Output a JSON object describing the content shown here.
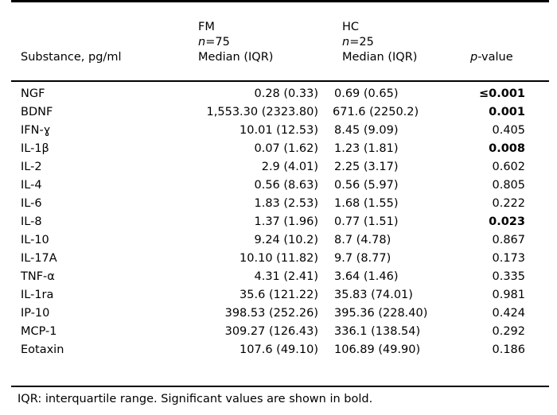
{
  "header": {
    "substance": "Substance, pg/ml",
    "fm": {
      "group": "FM",
      "n_label": "n",
      "n_value": "=75",
      "stat": "Median (IQR)"
    },
    "hc": {
      "group": "HC",
      "n_label": "n",
      "n_value": "=25",
      "stat": "Median (IQR)"
    },
    "p": {
      "italic": "p",
      "rest": "-value"
    }
  },
  "rows": [
    {
      "substance": "NGF",
      "fm": "0.28 (0.33)",
      "hc": "0.69 (0.65)",
      "p": "≤0.001",
      "bold": true
    },
    {
      "substance": "BDNF",
      "fm": "1,553.30 (2323.80)",
      "hc": "671.6 (2250.2)",
      "p": "0.001",
      "bold": true
    },
    {
      "substance": "IFN-ɣ",
      "fm": "10.01 (12.53)",
      "hc": "8.45 (9.09)",
      "p": "0.405",
      "bold": false
    },
    {
      "substance": "IL-1β",
      "fm": "0.07 (1.62)",
      "hc": "1.23 (1.81)",
      "p": "0.008",
      "bold": true
    },
    {
      "substance": "IL-2",
      "fm": "2.9 (4.01)",
      "hc": "2.25 (3.17)",
      "p": "0.602",
      "bold": false
    },
    {
      "substance": "IL-4",
      "fm": "0.56 (8.63)",
      "hc": "0.56 (5.97)",
      "p": "0.805",
      "bold": false
    },
    {
      "substance": "IL-6",
      "fm": "1.83 (2.53)",
      "hc": "1.68 (1.55)",
      "p": "0.222",
      "bold": false
    },
    {
      "substance": "IL-8",
      "fm": "1.37 (1.96)",
      "hc": "0.77 (1.51)",
      "p": "0.023",
      "bold": true
    },
    {
      "substance": "IL-10",
      "fm": "9.24 (10.2)",
      "hc": "8.7 (4.78)",
      "p": "0.867",
      "bold": false
    },
    {
      "substance": "IL-17A",
      "fm": "10.10 (11.82)",
      "hc": "9.7 (8.77)",
      "p": "0.173",
      "bold": false
    },
    {
      "substance": "TNF-α",
      "fm": "4.31 (2.41)",
      "hc": "3.64 (1.46)",
      "p": "0.335",
      "bold": false
    },
    {
      "substance": "IL-1ra",
      "fm": "35.6 (121.22)",
      "hc": "35.83 (74.01)",
      "p": "0.981",
      "bold": false
    },
    {
      "substance": "IP-10",
      "fm": "398.53 (252.26)",
      "hc": "395.36 (228.40)",
      "p": "0.424",
      "bold": false
    },
    {
      "substance": "MCP-1",
      "fm": "309.27 (126.43)",
      "hc": "336.1 (138.54)",
      "p": "0.292",
      "bold": false
    },
    {
      "substance": "Eotaxin",
      "fm": "107.6 (49.10)",
      "hc": "106.89 (49.90)",
      "p": "0.186",
      "bold": false
    }
  ],
  "footnote": "IQR: interquartile range. Significant values are shown in bold."
}
